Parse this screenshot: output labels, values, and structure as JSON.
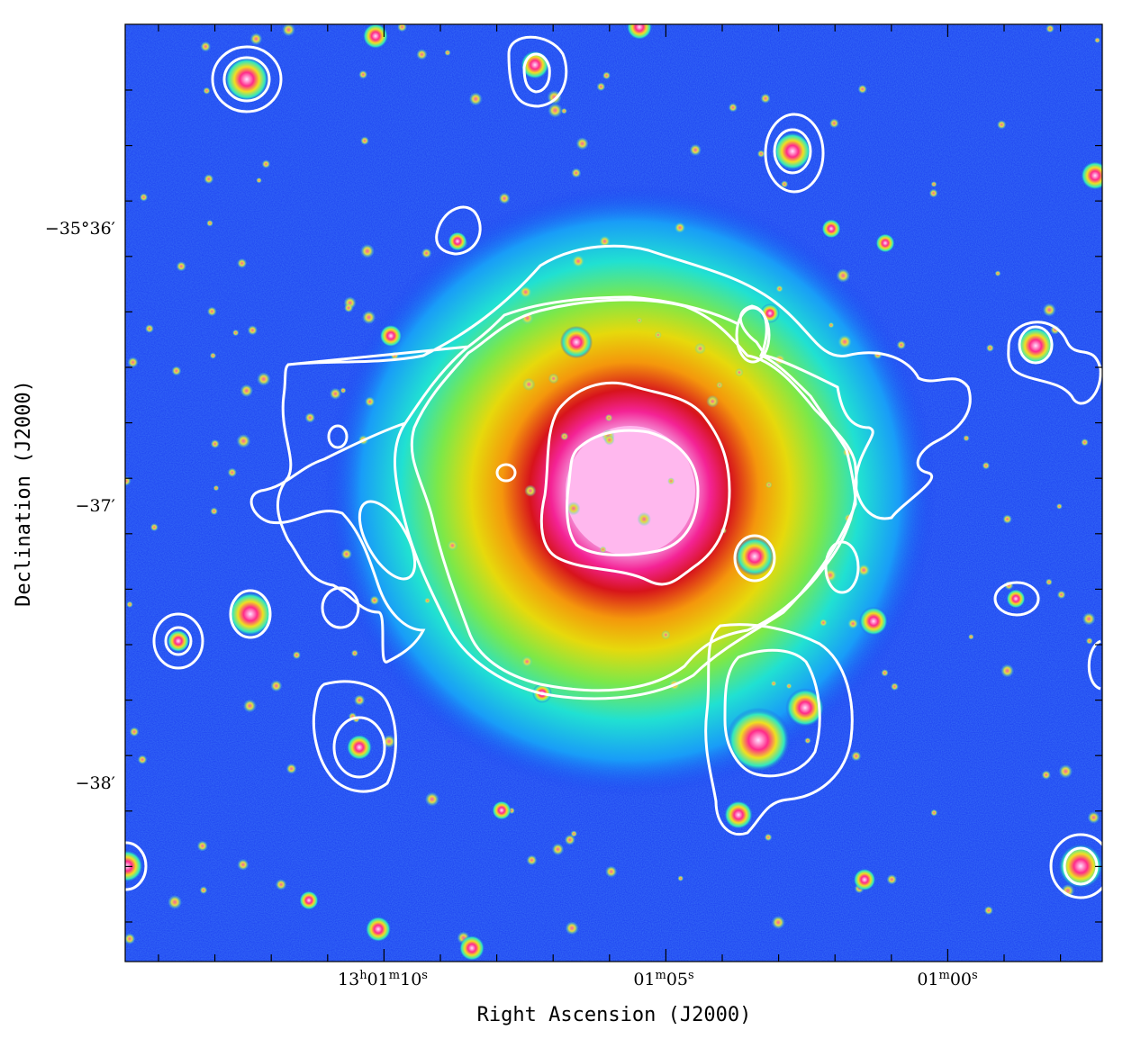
{
  "figure": {
    "x_axis_title": "Right Ascension (J2000)",
    "y_axis_title": "Declination (J2000)",
    "x_ticks": [
      {
        "h": "13",
        "m": "01",
        "s": "10"
      },
      {
        "h": "",
        "m": "01",
        "s": "05"
      },
      {
        "h": "",
        "m": "01",
        "s": "00"
      }
    ],
    "y_ticks": [
      "−35°36′",
      "−37′",
      "−38′"
    ],
    "colors": {
      "background": "#1a3cf0",
      "contour": "#ffffff",
      "core": "#ffc8f0"
    }
  }
}
